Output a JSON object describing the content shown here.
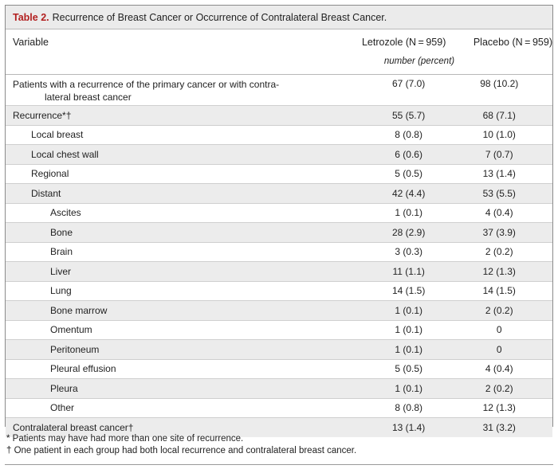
{
  "table": {
    "label": "Table 2.",
    "title": "Recurrence of Breast Cancer or Occurrence of Contralateral Breast Cancer.",
    "columns": {
      "variable": "Variable",
      "letrozole": "Letrozole (N = 959)",
      "placebo": "Placebo (N = 959)"
    },
    "unit": "number (percent)",
    "rows": [
      {
        "label_line1": "Patients with a recurrence of the primary cancer or with contra-",
        "label_line2": "lateral breast cancer",
        "letrozole": "67 (7.0)",
        "placebo": "98 (10.2)"
      },
      {
        "label": "Recurrence*†",
        "letrozole": "55 (5.7)",
        "placebo": "68 (7.1)"
      },
      {
        "label": "Local breast",
        "letrozole": "8 (0.8)",
        "placebo": "10 (1.0)"
      },
      {
        "label": "Local chest wall",
        "letrozole": "6 (0.6)",
        "placebo": "7 (0.7)"
      },
      {
        "label": "Regional",
        "letrozole": "5 (0.5)",
        "placebo": "13 (1.4)"
      },
      {
        "label": "Distant",
        "letrozole": "42 (4.4)",
        "placebo": "53 (5.5)"
      },
      {
        "label": "Ascites",
        "letrozole": "1 (0.1)",
        "placebo": "4 (0.4)"
      },
      {
        "label": "Bone",
        "letrozole": "28 (2.9)",
        "placebo": "37 (3.9)"
      },
      {
        "label": "Brain",
        "letrozole": "3 (0.3)",
        "placebo": "2 (0.2)"
      },
      {
        "label": "Liver",
        "letrozole": "11 (1.1)",
        "placebo": "12 (1.3)"
      },
      {
        "label": "Lung",
        "letrozole": "14 (1.5)",
        "placebo": "14 (1.5)"
      },
      {
        "label": "Bone marrow",
        "letrozole": "1 (0.1)",
        "placebo": "2 (0.2)"
      },
      {
        "label": "Omentum",
        "letrozole": "1 (0.1)",
        "placebo": "0"
      },
      {
        "label": "Peritoneum",
        "letrozole": "1 (0.1)",
        "placebo": "0"
      },
      {
        "label": "Pleural effusion",
        "letrozole": "5 (0.5)",
        "placebo": "4 (0.4)"
      },
      {
        "label": "Pleura",
        "letrozole": "1 (0.1)",
        "placebo": "2 (0.2)"
      },
      {
        "label": "Other",
        "letrozole": "8 (0.8)",
        "placebo": "12 (1.3)"
      },
      {
        "label": "Contralateral breast cancer†",
        "letrozole": "13 (1.4)",
        "placebo": "31 (3.2)"
      }
    ]
  },
  "footnotes": [
    "* Patients may have had more than one site of recurrence.",
    "† One patient in each group had both local recurrence and contralateral breast cancer."
  ]
}
